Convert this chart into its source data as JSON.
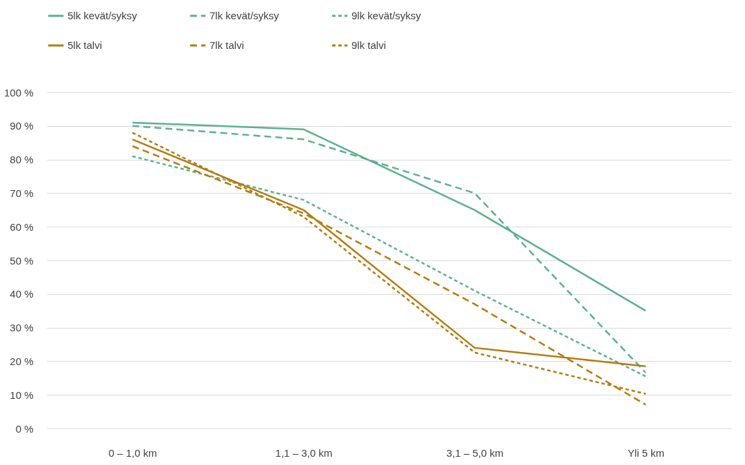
{
  "chart_data": {
    "type": "line",
    "categories": [
      "0 – 1,0 km",
      "1,1 – 3,0 km",
      "3,1 – 5,0 km",
      "Yli 5 km"
    ],
    "series": [
      {
        "name": "5lk kevät/syksy",
        "color": "#5bb08f",
        "line_style": "solid",
        "values": [
          91,
          89,
          65,
          35
        ]
      },
      {
        "name": "7lk kevät/syksy",
        "color": "#5bb08f",
        "line_style": "dashed",
        "values": [
          90,
          86,
          70,
          16.6
        ]
      },
      {
        "name": "9lk kevät/syksy",
        "color": "#5bb08f",
        "line_style": "dotted",
        "values": [
          81,
          68,
          41,
          15.5
        ]
      },
      {
        "name": "5lk talvi",
        "color": "#b27c0e",
        "line_style": "solid",
        "values": [
          86,
          65,
          24,
          18.5
        ]
      },
      {
        "name": "7lk talvi",
        "color": "#b27c0e",
        "line_style": "dashed",
        "values": [
          84,
          64,
          37,
          7.1
        ]
      },
      {
        "name": "9lk talvi",
        "color": "#b27c0e",
        "line_style": "dotted",
        "values": [
          88,
          63,
          22.6,
          10.3
        ]
      }
    ],
    "ylim": [
      0,
      100
    ],
    "yticks": [
      {
        "value": 0,
        "label": "0 %"
      },
      {
        "value": 10,
        "label": "10 %"
      },
      {
        "value": 20,
        "label": "20 %"
      },
      {
        "value": 30,
        "label": "30 %"
      },
      {
        "value": 40,
        "label": "40 %"
      },
      {
        "value": 50,
        "label": "50 %"
      },
      {
        "value": 60,
        "label": "60 %"
      },
      {
        "value": 70,
        "label": "70 %"
      },
      {
        "value": 80,
        "label": "80 %"
      },
      {
        "value": 90,
        "label": "90 %"
      },
      {
        "value": 100,
        "label": "100 %"
      }
    ],
    "grid": "y",
    "legend": "top left",
    "marker": "none"
  }
}
